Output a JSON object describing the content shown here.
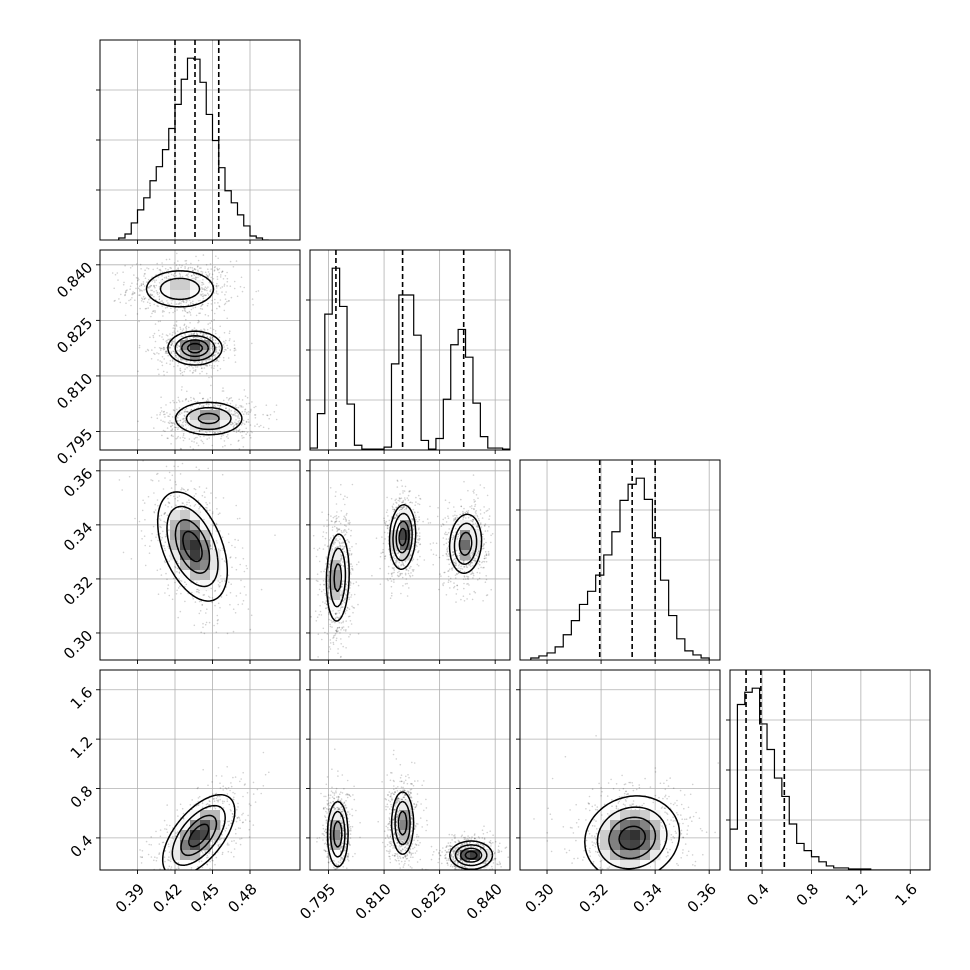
{
  "chart_data": {
    "type": "corner",
    "parameters": [
      {
        "range": [
          0.36,
          0.52
        ],
        "ticks": [
          0.39,
          0.42,
          0.45,
          0.48
        ],
        "tick_labels": [
          "0.39",
          "0.42",
          "0.45",
          "0.48"
        ],
        "quantiles": [
          0.42,
          0.436,
          0.455
        ],
        "histogram": {
          "edges": [
            0.375,
            0.38,
            0.385,
            0.39,
            0.395,
            0.4,
            0.405,
            0.41,
            0.415,
            0.42,
            0.425,
            0.43,
            0.435,
            0.44,
            0.445,
            0.45,
            0.455,
            0.46,
            0.465,
            0.47,
            0.475,
            0.48,
            0.485,
            0.49,
            0.495
          ],
          "counts": [
            2,
            6,
            17,
            30,
            42,
            59,
            73,
            90,
            111,
            135,
            160,
            181,
            180,
            157,
            125,
            99,
            72,
            49,
            37,
            25,
            14,
            4,
            2,
            0
          ]
        }
      },
      {
        "range": [
          0.79,
          0.844
        ],
        "ticks": [
          0.795,
          0.81,
          0.825,
          0.84
        ],
        "tick_labels": [
          "0.795",
          "0.810",
          "0.825",
          "0.840"
        ],
        "quantiles": [
          0.797,
          0.815,
          0.8315
        ],
        "histogram": {
          "edges": [
            0.79,
            0.792,
            0.794,
            0.796,
            0.798,
            0.8,
            0.802,
            0.804,
            0.806,
            0.808,
            0.81,
            0.812,
            0.814,
            0.816,
            0.818,
            0.82,
            0.822,
            0.824,
            0.826,
            0.828,
            0.83,
            0.832,
            0.834,
            0.836,
            0.838,
            0.84,
            0.842,
            0.844
          ],
          "counts": [
            2,
            38,
            142,
            190,
            150,
            48,
            5,
            1,
            1,
            1,
            3,
            90,
            162,
            162,
            120,
            10,
            1,
            12,
            53,
            110,
            126,
            97,
            49,
            14,
            2,
            2,
            1
          ]
        }
      },
      {
        "range": [
          0.29,
          0.364
        ],
        "ticks": [
          0.3,
          0.32,
          0.34,
          0.36
        ],
        "tick_labels": [
          "0.30",
          "0.32",
          "0.34",
          "0.36"
        ],
        "quantiles": [
          0.3195,
          0.3315,
          0.34
        ],
        "histogram": {
          "edges": [
            0.294,
            0.297,
            0.3,
            0.303,
            0.306,
            0.309,
            0.312,
            0.315,
            0.318,
            0.321,
            0.324,
            0.327,
            0.33,
            0.333,
            0.336,
            0.339,
            0.342,
            0.345,
            0.348,
            0.351,
            0.354,
            0.357,
            0.36
          ],
          "counts": [
            2,
            4,
            7,
            13,
            25,
            39,
            55,
            68,
            84,
            104,
            127,
            158,
            174,
            180,
            159,
            121,
            79,
            44,
            21,
            9,
            5,
            2
          ]
        }
      },
      {
        "range": [
          0.14,
          1.76
        ],
        "ticks": [
          0.4,
          0.8,
          1.2,
          1.6
        ],
        "tick_labels": [
          "0.4",
          "0.8",
          "1.2",
          "1.6"
        ],
        "quantiles": [
          0.27,
          0.39,
          0.58
        ],
        "histogram": {
          "edges": [
            0.14,
            0.2,
            0.26,
            0.32,
            0.38,
            0.44,
            0.5,
            0.56,
            0.62,
            0.68,
            0.74,
            0.8,
            0.86,
            0.92,
            0.98,
            1.04,
            1.1,
            1.16,
            1.22,
            1.28,
            1.34,
            1.4,
            1.46,
            1.52,
            1.58,
            1.64,
            1.7,
            1.76
          ],
          "counts": [
            40,
            162,
            174,
            178,
            143,
            118,
            90,
            72,
            45,
            26,
            19,
            13,
            8,
            4,
            2,
            2,
            1,
            1,
            1,
            0,
            0,
            0,
            0,
            0,
            0,
            0,
            0
          ]
        }
      }
    ],
    "blobs": [
      {
        "x": 0,
        "y": 1,
        "points": [
          [
            0.424,
            0.8335,
            0.0155,
            0.0028,
            0.0
          ]
        ]
      },
      {
        "x": 0,
        "y": 1,
        "points": [
          [
            0.436,
            0.8175,
            0.0105,
            0.0022,
            0.0
          ]
        ]
      },
      {
        "x": 0,
        "y": 1,
        "points": [
          [
            0.447,
            0.7985,
            0.014,
            0.0023,
            0.0
          ]
        ]
      },
      {
        "x": 0,
        "y": 2,
        "points": [
          [
            0.434,
            0.332,
            0.0135,
            0.0098,
            -0.45
          ]
        ]
      },
      {
        "x": 1,
        "y": 2,
        "points": [
          [
            0.7975,
            0.3205,
            0.0016,
            0.0085,
            0.1
          ]
        ]
      },
      {
        "x": 1,
        "y": 2,
        "points": [
          [
            0.815,
            0.3355,
            0.0017,
            0.0058,
            0.1
          ]
        ]
      },
      {
        "x": 1,
        "y": 2,
        "points": [
          [
            0.832,
            0.333,
            0.0022,
            0.0056,
            0.1
          ]
        ]
      },
      {
        "x": 2,
        "y": 3,
        "points": [
          [
            0.3315,
            0.4,
            0.0085,
            0.165,
            0.1
          ]
        ]
      },
      {
        "x": 1,
        "y": 3,
        "points": [
          [
            0.7975,
            0.43,
            0.0014,
            0.135,
            0.0
          ]
        ]
      },
      {
        "x": 1,
        "y": 3,
        "points": [
          [
            0.815,
            0.52,
            0.0015,
            0.13,
            0.0
          ]
        ]
      },
      {
        "x": 1,
        "y": 3,
        "points": [
          [
            0.8335,
            0.26,
            0.0028,
            0.055,
            0.0
          ]
        ]
      },
      {
        "x": 0,
        "y": 3,
        "points": [
          [
            0.439,
            0.42,
            0.014,
            0.16,
            0.6
          ]
        ]
      }
    ],
    "grid": true,
    "legend": "none"
  }
}
